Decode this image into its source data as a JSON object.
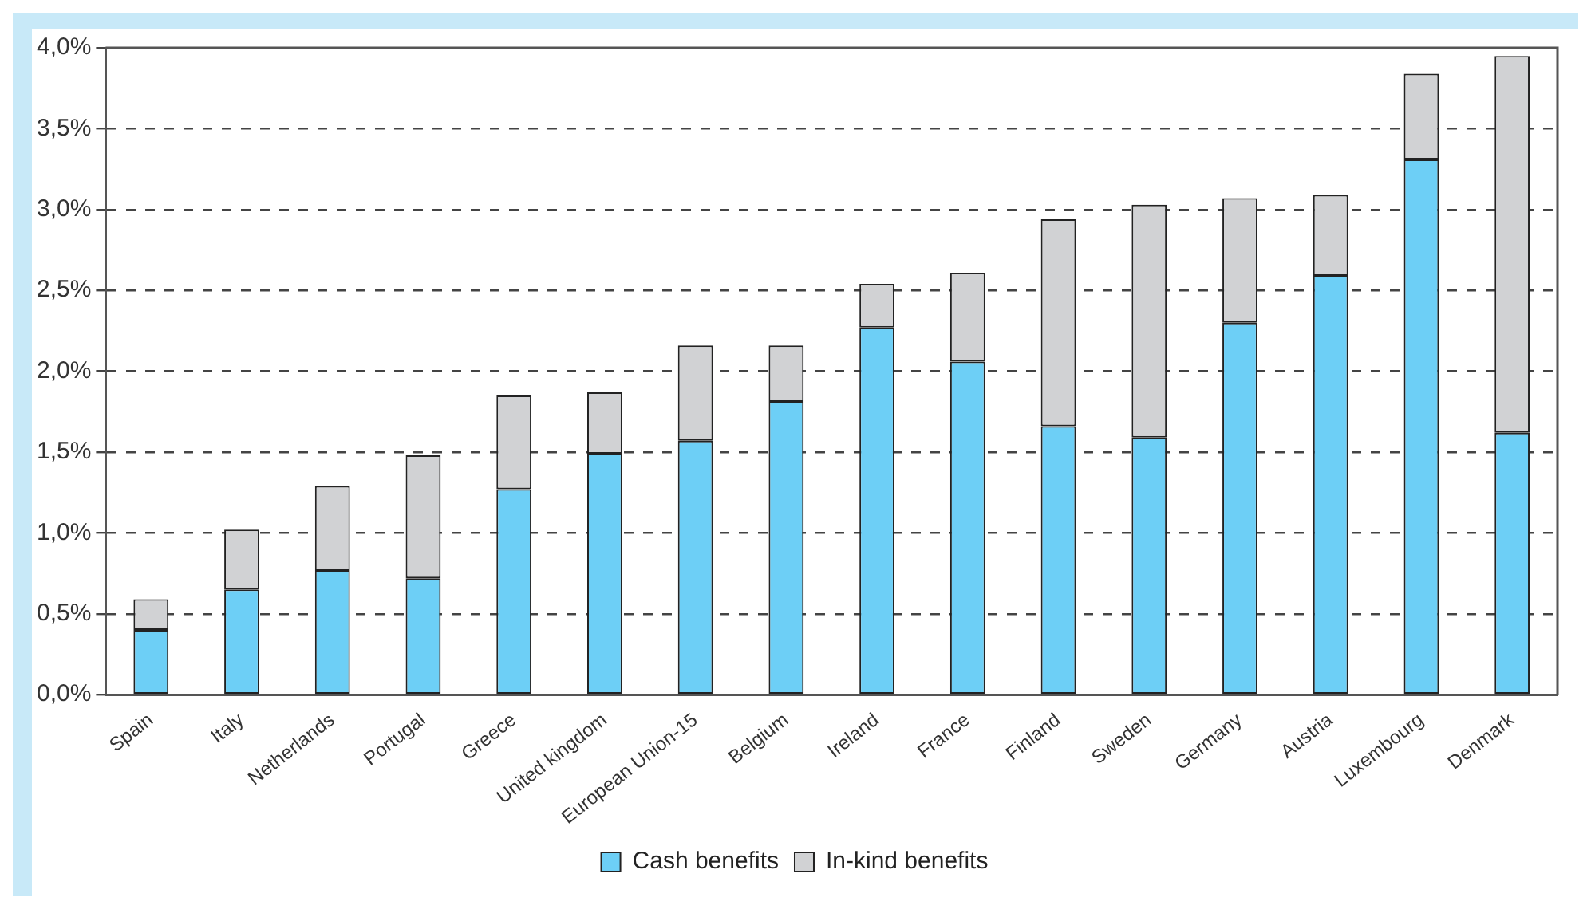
{
  "chart_data": {
    "type": "bar",
    "stacked": true,
    "categories": [
      "Spain",
      "Italy",
      "Netherlands",
      "Portugal",
      "Greece",
      "United kingdom",
      "European Union-15",
      "Belgium",
      "Ireland",
      "France",
      "Finland",
      "Sweden",
      "Germany",
      "Austria",
      "Luxembourg",
      "Denmark"
    ],
    "series": [
      {
        "name": "Cash benefits",
        "color": "#6dcff6",
        "values": [
          0.4,
          0.65,
          0.77,
          0.72,
          1.27,
          1.49,
          1.57,
          1.81,
          2.27,
          2.06,
          1.66,
          1.59,
          2.3,
          2.59,
          3.31,
          1.62
        ]
      },
      {
        "name": "In-kind benefits",
        "color": "#d1d2d4",
        "values": [
          0.19,
          0.37,
          0.52,
          0.76,
          0.58,
          0.38,
          0.59,
          0.35,
          0.27,
          0.55,
          1.28,
          1.44,
          0.77,
          0.5,
          0.53,
          2.33
        ]
      }
    ],
    "ylim": [
      0,
      4
    ],
    "yticks": [
      {
        "value": 0,
        "label": "0,0%"
      },
      {
        "value": 0.5,
        "label": "0,5%"
      },
      {
        "value": 1,
        "label": "1,0%"
      },
      {
        "value": 1.5,
        "label": "1,5%"
      },
      {
        "value": 2,
        "label": "2,0%"
      },
      {
        "value": 2.5,
        "label": "2,5%"
      },
      {
        "value": 3,
        "label": "3,0%"
      },
      {
        "value": 3.5,
        "label": "3,5%"
      },
      {
        "value": 4,
        "label": "4,0%"
      }
    ],
    "grid": "y",
    "legend": "bottom"
  }
}
